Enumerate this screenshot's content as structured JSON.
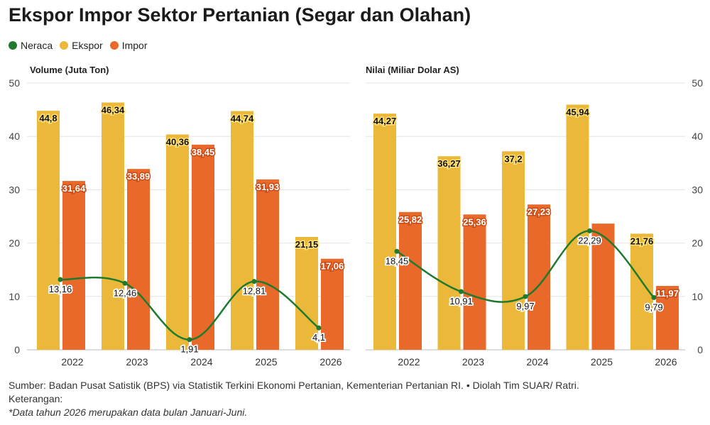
{
  "title": "Ekspor Impor Sektor Pertanian (Segar dan Olahan)",
  "legend": [
    {
      "name": "Neraca",
      "color": "#1f7a2e"
    },
    {
      "name": "Ekspor",
      "color": "#ecb839"
    },
    {
      "name": "Impor",
      "color": "#e8692a"
    }
  ],
  "chart_data": [
    {
      "type": "bar",
      "title": "Volume (Juta Ton)",
      "categories": [
        "2022",
        "2023",
        "2024",
        "2025",
        "2026"
      ],
      "ylim": [
        0,
        50
      ],
      "yticks": [
        "0",
        "10",
        "20",
        "30",
        "40",
        "50"
      ],
      "grid": true,
      "series": [
        {
          "name": "Ekspor",
          "values": [
            44.8,
            46.34,
            40.36,
            44.74,
            21.15
          ],
          "labels": [
            "44,8",
            "46,34",
            "40,36",
            "44,74",
            "21,15"
          ]
        },
        {
          "name": "Impor",
          "values": [
            31.64,
            33.89,
            38.45,
            31.93,
            17.06
          ],
          "labels": [
            "31,64",
            "33,89",
            "38,45",
            "31,93",
            "17,06"
          ]
        },
        {
          "name": "Neraca",
          "type": "line",
          "values": [
            13.16,
            12.46,
            1.91,
            12.81,
            4.1
          ],
          "labels": [
            "13,16",
            "12,46",
            "1,91",
            "12,81",
            "4,1"
          ]
        }
      ]
    },
    {
      "type": "bar",
      "title": "Nilai (Miliar Dolar AS)",
      "categories": [
        "2022",
        "2023",
        "2024",
        "2025",
        "2026"
      ],
      "ylim": [
        0,
        50
      ],
      "yticks": [
        "0",
        "10",
        "20",
        "30",
        "40",
        "50"
      ],
      "grid": true,
      "series": [
        {
          "name": "Ekspor",
          "values": [
            44.27,
            36.27,
            37.2,
            45.94,
            21.76
          ],
          "labels": [
            "44,27",
            "36,27",
            "37,2",
            "45,94",
            "21,76"
          ]
        },
        {
          "name": "Impor",
          "values": [
            25.82,
            25.36,
            27.23,
            23.65,
            11.97
          ],
          "labels": [
            "25,82",
            "25,36",
            "27,23",
            "",
            "11,97"
          ]
        },
        {
          "name": "Neraca",
          "type": "line",
          "values": [
            18.45,
            10.91,
            9.97,
            22.29,
            9.79
          ],
          "labels": [
            "18,45",
            "10,91",
            "9,97",
            "22,29",
            "9,79"
          ]
        }
      ]
    }
  ],
  "footer": {
    "source": "Sumber: Badan Pusat Satistik (BPS) via Statistik Terkini Ekonomi Pertanian, Kementerian Pertanian RI. • Diolah Tim SUAR/ Ratri.",
    "keterangan": "Keterangan:",
    "note": "*Data tahun 2026 merupakan data bulan Januari-Juni."
  }
}
